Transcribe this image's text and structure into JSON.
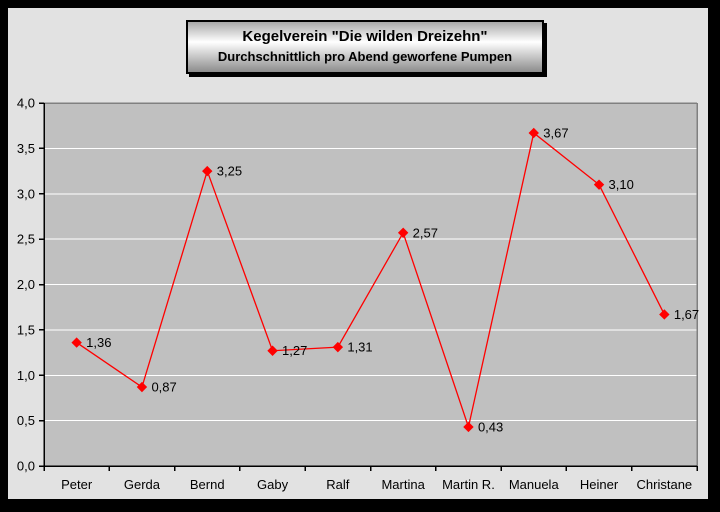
{
  "title": {
    "line1": "Kegelverein \"Die wilden Dreizehn\"",
    "line2": "Durchschnittlich pro Abend geworfene Pumpen"
  },
  "chart_data": {
    "type": "line",
    "title": "Kegelverein \"Die wilden Dreizehn\"",
    "subtitle": "Durchschnittlich pro Abend geworfene Pumpen",
    "categories": [
      "Peter",
      "Gerda",
      "Bernd",
      "Gaby",
      "Ralf",
      "Martina",
      "Martin R.",
      "Manuela",
      "Heiner",
      "Christane"
    ],
    "values": [
      1.36,
      0.87,
      3.25,
      1.27,
      1.31,
      2.57,
      0.43,
      3.67,
      3.1,
      1.67
    ],
    "point_labels": [
      "1,36",
      "0,87",
      "3,25",
      "1,27",
      "1,31",
      "2,57",
      "0,43",
      "3,67",
      "3,10",
      "1,67"
    ],
    "y_tick_labels": [
      "0,0",
      "0,5",
      "1,0",
      "1,5",
      "2,0",
      "2,5",
      "3,0",
      "3,5",
      "4,0"
    ],
    "y_tick_values": [
      0,
      0.5,
      1,
      1.5,
      2,
      2.5,
      3,
      3.5,
      4
    ],
    "ylim": [
      0,
      4
    ],
    "xlabel": "",
    "ylabel": "",
    "grid": "horizontal white gridlines every 0.5",
    "legend": "none",
    "marker": "diamond",
    "colors": {
      "series_line": "#ff0000",
      "marker": "#ff0000",
      "plot_background": "#c0c0c0",
      "chart_background": "#e2e2e2",
      "gridline": "#ffffff",
      "plot_border": "#808080",
      "axis_line": "#000000",
      "text": "#000000",
      "outer_frame": "#000000"
    }
  }
}
